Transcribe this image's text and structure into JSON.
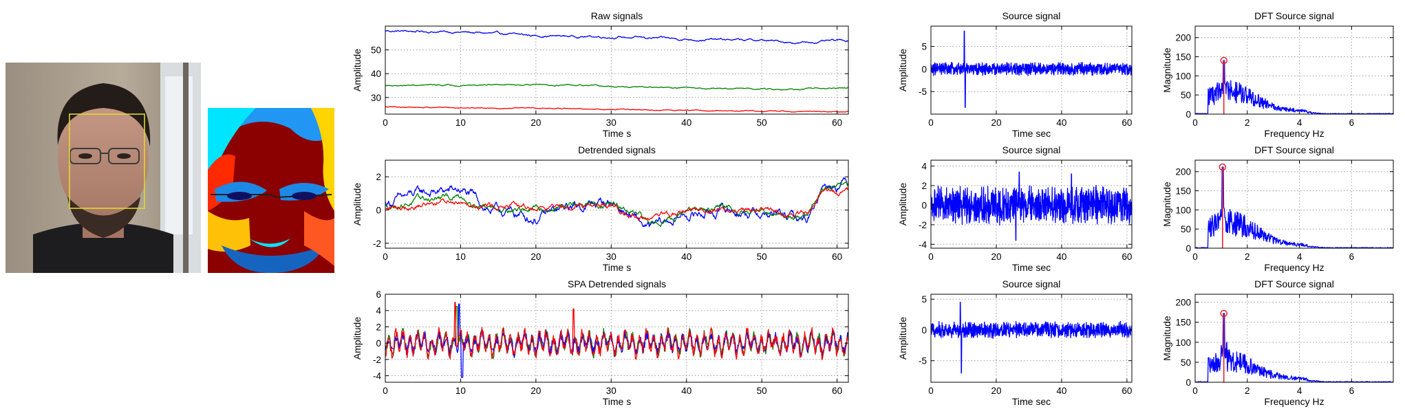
{
  "colors": {
    "blue": "#0000ff",
    "green": "#008000",
    "red": "#ff0000",
    "peak": "#e8202a"
  },
  "chart_data": [
    {
      "id": "raw",
      "type": "line",
      "title": "Raw signals",
      "xlabel": "Time s",
      "ylabel": "Amplitude",
      "xlim": [
        0,
        61.5
      ],
      "ylim": [
        23,
        60
      ],
      "xticks": [
        0,
        10,
        20,
        30,
        40,
        50,
        60
      ],
      "yticks": [
        30,
        40,
        50
      ],
      "series": [
        {
          "name": "blue",
          "color": "#0000ff",
          "gen": "raw",
          "anchors": [
            [
              0,
              58
            ],
            [
              10,
              57.5
            ],
            [
              20,
              56
            ],
            [
              30,
              55.5
            ],
            [
              40,
              54.5
            ],
            [
              50,
              54
            ],
            [
              55,
              53
            ],
            [
              61.5,
              54
            ]
          ],
          "noise": 0.5
        },
        {
          "name": "green",
          "color": "#008000",
          "gen": "raw",
          "anchors": [
            [
              0,
              35
            ],
            [
              20,
              35.5
            ],
            [
              30,
              34.5
            ],
            [
              40,
              34
            ],
            [
              55,
              33.5
            ],
            [
              61.5,
              34
            ]
          ],
          "noise": 0.3
        },
        {
          "name": "red",
          "color": "#ff0000",
          "gen": "raw",
          "anchors": [
            [
              0,
              26
            ],
            [
              20,
              25.5
            ],
            [
              40,
              24.5
            ],
            [
              61.5,
              24
            ]
          ],
          "noise": 0.25
        }
      ]
    },
    {
      "id": "detrended",
      "type": "line",
      "title": "Detrended signals",
      "xlabel": "Time s",
      "ylabel": "Amplitude",
      "xlim": [
        0,
        61.5
      ],
      "ylim": [
        -2.3,
        3
      ],
      "xticks": [
        0,
        10,
        20,
        30,
        40,
        50,
        60
      ],
      "yticks": [
        -2,
        0,
        2
      ],
      "series": [
        {
          "name": "blue",
          "color": "#0000ff",
          "gen": "detrend",
          "anchors": [
            [
              0,
              0.4
            ],
            [
              5,
              1
            ],
            [
              10,
              1.2
            ],
            [
              14,
              0
            ],
            [
              20,
              -0.5
            ],
            [
              25,
              0.2
            ],
            [
              30,
              0.5
            ],
            [
              35,
              -1.2
            ],
            [
              40,
              -0.3
            ],
            [
              45,
              0
            ],
            [
              50,
              -0.2
            ],
            [
              56,
              -0.6
            ],
            [
              58,
              1.5
            ],
            [
              61.5,
              1.8
            ]
          ],
          "noise": 0.35
        },
        {
          "name": "green",
          "color": "#008000",
          "gen": "detrend",
          "anchors": [
            [
              0,
              0.2
            ],
            [
              5,
              0.6
            ],
            [
              10,
              0.8
            ],
            [
              14,
              0.2
            ],
            [
              20,
              0
            ],
            [
              25,
              0.3
            ],
            [
              30,
              0.4
            ],
            [
              35,
              -0.8
            ],
            [
              40,
              -0.1
            ],
            [
              45,
              0.1
            ],
            [
              50,
              0
            ],
            [
              56,
              -0.4
            ],
            [
              58,
              1.3
            ],
            [
              61.5,
              1.3
            ]
          ],
          "noise": 0.22
        },
        {
          "name": "red",
          "color": "#ff0000",
          "gen": "detrend",
          "anchors": [
            [
              0,
              0
            ],
            [
              5,
              0.4
            ],
            [
              10,
              0.6
            ],
            [
              14,
              0.3
            ],
            [
              20,
              0.1
            ],
            [
              25,
              0.4
            ],
            [
              30,
              0.3
            ],
            [
              35,
              -0.7
            ],
            [
              40,
              0
            ],
            [
              45,
              0
            ],
            [
              50,
              0
            ],
            [
              56,
              -0.3
            ],
            [
              58,
              1.2
            ],
            [
              61.5,
              1.1
            ]
          ],
          "noise": 0.2
        }
      ]
    },
    {
      "id": "spa",
      "type": "line",
      "title": "SPA Detrended signals",
      "xlabel": "Time s",
      "ylabel": "Amplitude",
      "xlim": [
        0,
        61.5
      ],
      "ylim": [
        -4.8,
        6
      ],
      "xticks": [
        0,
        10,
        20,
        30,
        40,
        50,
        60
      ],
      "yticks": [
        -4,
        -2,
        0,
        2,
        4,
        6
      ],
      "series": [
        {
          "name": "green",
          "color": "#008000",
          "gen": "osc",
          "amp": 1.2,
          "spikes": [
            [
              9.5,
              4.5
            ]
          ]
        },
        {
          "name": "blue",
          "color": "#0000ff",
          "gen": "osc",
          "amp": 1.0,
          "spikes": [
            [
              10.2,
              -4.2
            ],
            [
              9.8,
              4.8
            ]
          ]
        },
        {
          "name": "red",
          "color": "#ff0000",
          "gen": "osc",
          "amp": 1.3,
          "spikes": [
            [
              9.3,
              5
            ],
            [
              25,
              4.2
            ]
          ]
        }
      ]
    },
    {
      "id": "src1",
      "type": "line",
      "title": "Source signal",
      "xlabel": "Time sec",
      "ylabel": "Amplitude",
      "xlim": [
        0,
        61.5
      ],
      "ylim": [
        -10,
        9.5
      ],
      "xticks": [
        0,
        20,
        40,
        60
      ],
      "yticks": [
        -5,
        0,
        5
      ],
      "series": [
        {
          "name": "source",
          "color": "#0000ff",
          "gen": "noise",
          "amp": 1.2,
          "spikes": [
            [
              10.2,
              8.4
            ],
            [
              10.5,
              -8.5
            ]
          ]
        }
      ]
    },
    {
      "id": "src2",
      "type": "line",
      "title": "Source signal",
      "xlabel": "Time sec",
      "ylabel": "Amplitude",
      "xlim": [
        0,
        61.5
      ],
      "ylim": [
        -4.4,
        4.6
      ],
      "xticks": [
        0,
        20,
        40,
        60
      ],
      "yticks": [
        -4,
        -2,
        0,
        2,
        4
      ],
      "series": [
        {
          "name": "source",
          "color": "#0000ff",
          "gen": "noise",
          "amp": 1.6,
          "spikes": [
            [
              27,
              3.4
            ],
            [
              26,
              -3.6
            ],
            [
              43,
              3.2
            ]
          ]
        }
      ]
    },
    {
      "id": "src3",
      "type": "line",
      "title": "Source signal",
      "xlabel": "Time sec",
      "ylabel": "Amplitude",
      "xlim": [
        0,
        61.5
      ],
      "ylim": [
        -8.5,
        5.8
      ],
      "xticks": [
        0,
        20,
        40,
        60
      ],
      "yticks": [
        -5,
        0,
        5
      ],
      "series": [
        {
          "name": "source",
          "color": "#0000ff",
          "gen": "noise",
          "amp": 1.1,
          "spikes": [
            [
              9,
              4.5
            ],
            [
              9.3,
              -7
            ]
          ]
        }
      ]
    },
    {
      "id": "dft1",
      "type": "line",
      "title": "DFT Source signal",
      "xlabel": "Frequency Hz",
      "ylabel": "Magnitude",
      "xlim": [
        0,
        7.6
      ],
      "ylim": [
        0,
        230
      ],
      "xticks": [
        0,
        2,
        4,
        6
      ],
      "yticks": [
        0,
        50,
        100,
        150,
        200
      ],
      "series": [
        {
          "name": "spectrum",
          "color": "#0000ff",
          "gen": "spectrum",
          "peak": [
            1.1,
            140
          ],
          "height": 60
        }
      ],
      "peak_marker": {
        "x": 1.1,
        "y": 140
      }
    },
    {
      "id": "dft2",
      "type": "line",
      "title": "DFT Source signal",
      "xlabel": "Frequency Hz",
      "ylabel": "Magnitude",
      "xlim": [
        0,
        7.6
      ],
      "ylim": [
        0,
        230
      ],
      "xticks": [
        0,
        2,
        4,
        6
      ],
      "yticks": [
        0,
        50,
        100,
        150,
        200
      ],
      "series": [
        {
          "name": "spectrum",
          "color": "#0000ff",
          "gen": "spectrum",
          "peak": [
            1.05,
            212
          ],
          "height": 70
        }
      ],
      "peak_marker": {
        "x": 1.05,
        "y": 212
      }
    },
    {
      "id": "dft3",
      "type": "line",
      "title": "DFT Source signal",
      "xlabel": "Frequency Hz",
      "ylabel": "Magnitude",
      "xlim": [
        0,
        7.6
      ],
      "ylim": [
        0,
        220
      ],
      "xticks": [
        0,
        2,
        4,
        6
      ],
      "yticks": [
        0,
        50,
        100,
        150,
        200
      ],
      "series": [
        {
          "name": "spectrum",
          "color": "#0000ff",
          "gen": "spectrum",
          "peak": [
            1.1,
            172
          ],
          "height": 55
        }
      ],
      "peak_marker": {
        "x": 1.1,
        "y": 172
      }
    }
  ]
}
